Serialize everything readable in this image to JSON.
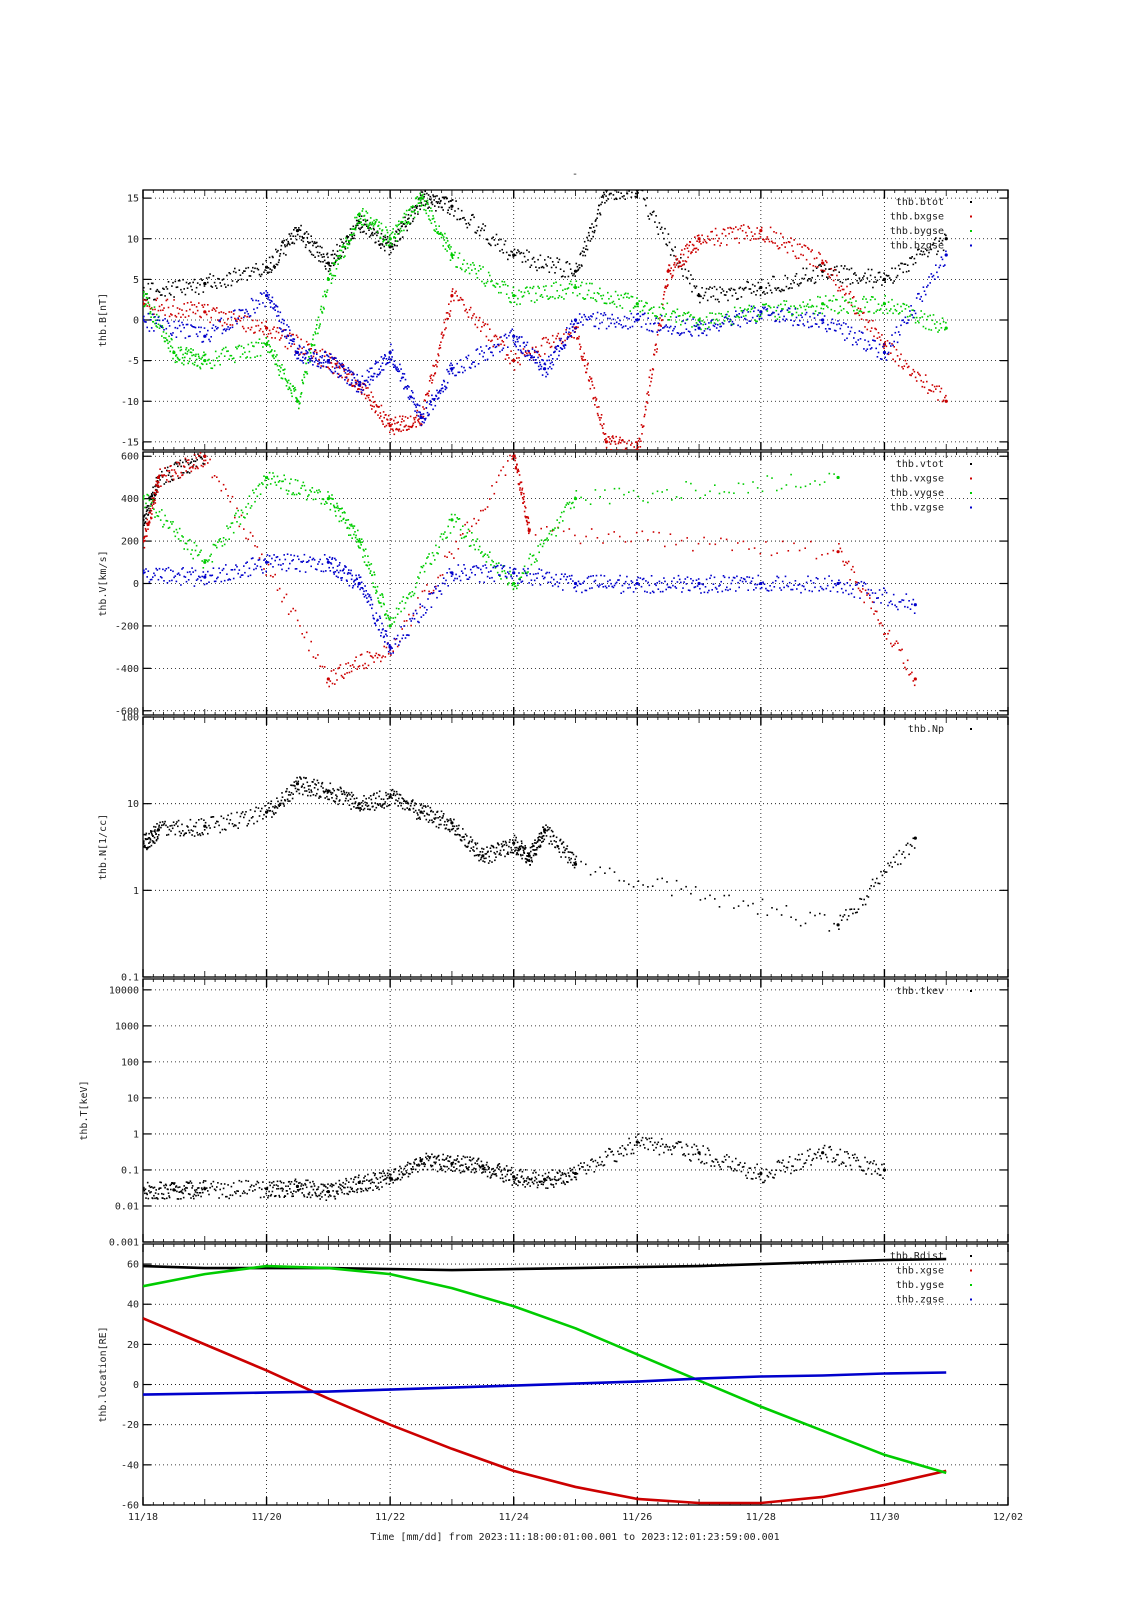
{
  "figure": {
    "title": "-",
    "xlabel": "Time [mm/dd]  from 2023:11:18:00:01:00.001  to  2023:12:01:23:59:00.001"
  },
  "chart_data": [
    {
      "type": "scatter",
      "ylabel": "thb.B[nT]",
      "ylim": [
        -16,
        16
      ],
      "log": false,
      "yticks": [
        -15,
        -10,
        -5,
        0,
        5,
        10,
        15
      ],
      "x_range_days": [
        "11/18",
        "12/02"
      ],
      "legend": [
        "thb.btot",
        "thb.bxgse",
        "thb.bygse",
        "thb.bzgse"
      ],
      "series": [
        {
          "name": "thb.btot",
          "color": "#000000",
          "x": [
            "11/18",
            "11/19",
            "11/20",
            "11/20 12:00",
            "11/21",
            "11/21 12:00",
            "11/22",
            "11/22 12:00",
            "11/23",
            "11/24",
            "11/25",
            "11/25 12:00",
            "11/26",
            "11/27",
            "11/28",
            "11/29",
            "11/30",
            "12/01"
          ],
          "y": [
            3.5,
            4.5,
            6.5,
            11,
            7,
            12,
            9,
            15,
            14,
            8,
            6,
            16,
            16,
            3,
            4,
            6,
            5,
            10
          ]
        },
        {
          "name": "thb.bxgse",
          "color": "#cc0000",
          "x": [
            "11/18",
            "11/19",
            "11/20",
            "11/21",
            "11/21 12:00",
            "11/22",
            "11/22 12:00",
            "11/23",
            "11/24",
            "11/25",
            "11/25 12:00",
            "11/26",
            "11/26 12:00",
            "11/27",
            "11/28",
            "11/29",
            "11/30",
            "12/01"
          ],
          "y": [
            2,
            1,
            -1,
            -5,
            -8,
            -13,
            -12,
            3,
            -5,
            -1,
            -15,
            -16,
            6,
            10,
            11,
            7,
            -3,
            -10
          ]
        },
        {
          "name": "thb.bygse",
          "color": "#00cc00",
          "x": [
            "11/18",
            "11/18 12:00",
            "11/19",
            "11/20",
            "11/20 12:00",
            "11/21",
            "11/21 12:00",
            "11/22",
            "11/22 12:00",
            "11/23",
            "11/24",
            "11/25",
            "11/26",
            "11/27",
            "11/28",
            "11/29",
            "11/30",
            "12/01"
          ],
          "y": [
            3,
            -4,
            -5,
            -3,
            -10,
            5,
            13,
            10,
            15,
            8,
            3,
            4,
            2,
            0,
            1,
            2,
            2,
            -1
          ]
        },
        {
          "name": "thb.bzgse",
          "color": "#0000cc",
          "x": [
            "11/18",
            "11/19",
            "11/20",
            "11/20 12:00",
            "11/21",
            "11/21 12:00",
            "11/22",
            "11/22 12:00",
            "11/23",
            "11/24",
            "11/24 12:00",
            "11/25",
            "11/26",
            "11/27",
            "11/28",
            "11/29",
            "11/30",
            "12/01"
          ],
          "y": [
            0,
            -2,
            3,
            -4,
            -5,
            -8,
            -4,
            -12,
            -6,
            -2,
            -6,
            0,
            0,
            -1,
            1,
            0,
            -4,
            8
          ]
        }
      ]
    },
    {
      "type": "scatter",
      "ylabel": "thb.V[km/s]",
      "ylim": [
        -620,
        620
      ],
      "log": false,
      "yticks": [
        -600,
        -400,
        -200,
        0,
        200,
        400,
        600
      ],
      "legend": [
        "thb.vtot",
        "thb.vxgse",
        "thb.vygse",
        "thb.vzgse"
      ],
      "series": [
        {
          "name": "thb.vtot",
          "color": "#000000",
          "x": [
            "11/18",
            "11/18 06:00",
            "11/19"
          ],
          "y": [
            300,
            500,
            600
          ]
        },
        {
          "name": "thb.vxgse",
          "color": "#cc0000",
          "x": [
            "11/18",
            "11/18 06:00",
            "11/19",
            "11/21",
            "11/22",
            "11/24",
            "11/24 06:00",
            "11/29 06:00",
            "11/30 12:00"
          ],
          "y": [
            200,
            500,
            600,
            -450,
            -300,
            600,
            250,
            150,
            -450
          ]
        },
        {
          "name": "thb.vygse",
          "color": "#00cc00",
          "x": [
            "11/18",
            "11/19",
            "11/20",
            "11/21",
            "11/21 12:00",
            "11/22",
            "11/23",
            "11/24",
            "11/25",
            "11/29 06:00"
          ],
          "y": [
            400,
            100,
            500,
            400,
            200,
            -200,
            300,
            0,
            400,
            500
          ]
        },
        {
          "name": "thb.vzgse",
          "color": "#0000cc",
          "x": [
            "11/18",
            "11/19",
            "11/20",
            "11/21",
            "11/21 12:00",
            "11/22",
            "11/23",
            "11/24",
            "11/25",
            "11/26",
            "11/27",
            "11/28",
            "11/29 06:00",
            "11/30 12:00"
          ],
          "y": [
            50,
            30,
            100,
            100,
            0,
            -300,
            50,
            50,
            0,
            0,
            0,
            0,
            0,
            -100
          ]
        }
      ]
    },
    {
      "type": "scatter",
      "ylabel": "thb.N[1/cc]",
      "ylim": [
        0.1,
        100
      ],
      "log": true,
      "yticks": [
        0.1,
        1,
        10,
        100
      ],
      "legend": [
        "thb.Np"
      ],
      "series": [
        {
          "name": "thb.Np",
          "color": "#000000",
          "x": [
            "11/18",
            "11/18 06:00",
            "11/19",
            "11/20",
            "11/20 12:00",
            "11/21",
            "11/21 12:00",
            "11/22",
            "11/22 12:00",
            "11/23",
            "11/23 12:00",
            "11/24",
            "11/24 06:00",
            "11/24 12:00",
            "11/25",
            "11/29 06:00",
            "11/30 12:00"
          ],
          "y": [
            3.5,
            5,
            5.5,
            8,
            17,
            14,
            10,
            12,
            8,
            6,
            2.5,
            3.5,
            2.5,
            5,
            2,
            0.4,
            4
          ]
        }
      ]
    },
    {
      "type": "scatter",
      "ylabel": "thb.T[keV]",
      "ylim": [
        0.001,
        20000
      ],
      "log": true,
      "yticks": [
        0.001,
        0.01,
        0.1,
        1,
        10,
        100,
        1000,
        10000
      ],
      "legend": [
        "thb.tkev"
      ],
      "series": [
        {
          "name": "thb.tkev",
          "color": "#000000",
          "x": [
            "11/18",
            "11/18 12:00",
            "11/19",
            "11/20",
            "11/20 12:00",
            "11/21",
            "11/21 12:00",
            "11/22",
            "11/22 12:00",
            "11/23",
            "11/23 12:00",
            "11/24",
            "11/24 12:00",
            "11/25",
            "11/26",
            "11/27",
            "11/28",
            "11/29",
            "11/30"
          ],
          "y": [
            0.03,
            0.028,
            0.03,
            0.03,
            0.035,
            0.025,
            0.045,
            0.06,
            0.18,
            0.15,
            0.13,
            0.065,
            0.055,
            0.08,
            0.6,
            0.3,
            0.08,
            0.3,
            0.1
          ]
        }
      ]
    },
    {
      "type": "line",
      "ylabel": "thb.location[RE]",
      "ylim": [
        -60,
        70
      ],
      "log": false,
      "yticks": [
        -60,
        -40,
        -20,
        0,
        20,
        40,
        60
      ],
      "legend": [
        "thb.Rdist",
        "thb.xgse",
        "thb.ygse",
        "thb.zgse"
      ],
      "series": [
        {
          "name": "thb.Rdist",
          "color": "#000000",
          "x": [
            "11/18",
            "11/19",
            "11/20",
            "11/21",
            "11/22",
            "11/23",
            "11/24",
            "11/25",
            "11/26",
            "11/27",
            "11/28",
            "11/29",
            "11/30",
            "12/01"
          ],
          "y": [
            59,
            58,
            58,
            58,
            57.5,
            57,
            57.5,
            58,
            58.5,
            59,
            60,
            61,
            62,
            62.5
          ]
        },
        {
          "name": "thb.xgse",
          "color": "#cc0000",
          "x": [
            "11/18",
            "11/19",
            "11/20",
            "11/21",
            "11/22",
            "11/23",
            "11/24",
            "11/25",
            "11/26",
            "11/27",
            "11/28",
            "11/29",
            "11/30",
            "12/01"
          ],
          "y": [
            33,
            20,
            7,
            -7,
            -20,
            -32,
            -43,
            -51,
            -57,
            -59,
            -59,
            -56,
            -50,
            -43
          ]
        },
        {
          "name": "thb.ygse",
          "color": "#00cc00",
          "x": [
            "11/18",
            "11/19",
            "11/20",
            "11/21",
            "11/22",
            "11/23",
            "11/24",
            "11/25",
            "11/26",
            "11/27",
            "11/28",
            "11/29",
            "11/30",
            "12/01"
          ],
          "y": [
            49,
            55,
            59,
            58,
            55,
            48,
            39,
            28,
            15,
            2,
            -11,
            -23,
            -35,
            -44
          ]
        },
        {
          "name": "thb.zgse",
          "color": "#0000cc",
          "x": [
            "11/18",
            "11/19",
            "11/20",
            "11/21",
            "11/22",
            "11/23",
            "11/24",
            "11/25",
            "11/26",
            "11/27",
            "11/28",
            "11/29",
            "11/30",
            "12/01"
          ],
          "y": [
            -5,
            -4.5,
            -4,
            -3.5,
            -2.5,
            -1.5,
            -0.5,
            0.5,
            1.5,
            3,
            4,
            4.5,
            5.5,
            6
          ]
        }
      ]
    }
  ],
  "xaxis": {
    "ticks": [
      "11/18",
      "11/20",
      "11/22",
      "11/24",
      "11/26",
      "11/28",
      "11/30",
      "12/02"
    ]
  }
}
